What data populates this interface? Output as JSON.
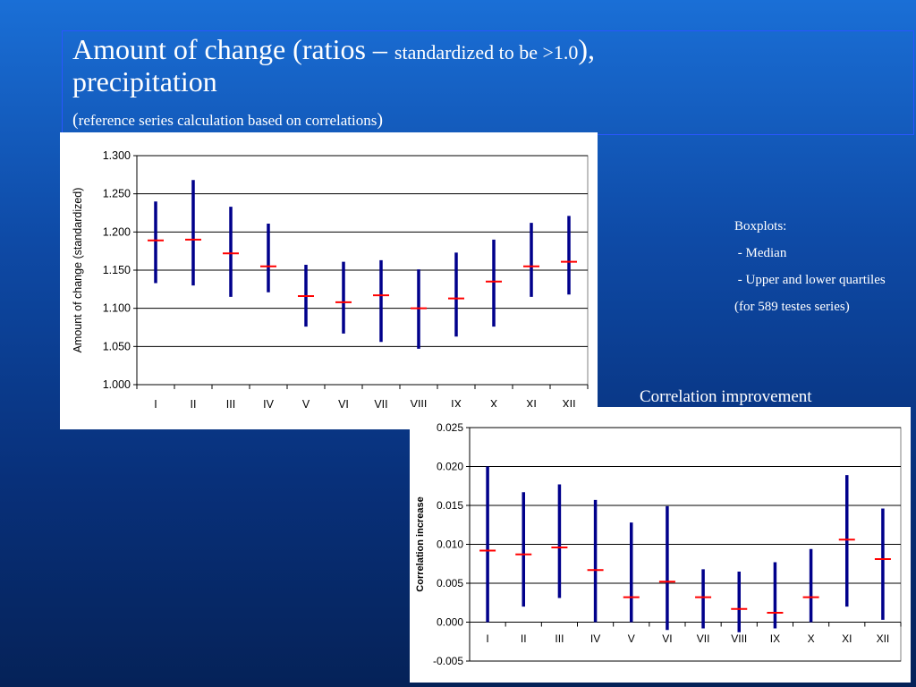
{
  "slide": {
    "title_main": "Amount of change (ratios – ",
    "title_small": "standardized to be >1.0",
    "title_close": "),",
    "title_line2": "precipitation",
    "subtitle_open": "(",
    "subtitle_text": "reference series calculation based on correlations",
    "subtitle_close": ")"
  },
  "notes": {
    "header": "Boxplots:",
    "item1": " - Median",
    "item2": " - Upper and lower quartiles",
    "footer": "(for 589 testes series)"
  },
  "chart2_heading": "Correlation improvement",
  "colors": {
    "whisker": "#00008b",
    "median": "#ff0000",
    "grid": "#000000",
    "background_top": "#1a6fd6",
    "background_bottom": "#052258"
  },
  "chart_data": [
    {
      "type": "boxplot",
      "ylabel": "Amount of change (standardized)",
      "ylim": [
        1.0,
        1.3
      ],
      "yticks": [
        "1.000",
        "1.050",
        "1.100",
        "1.150",
        "1.200",
        "1.250",
        "1.300"
      ],
      "grid": true,
      "categories": [
        "I",
        "II",
        "III",
        "IV",
        "V",
        "VI",
        "VII",
        "VIII",
        "IX",
        "X",
        "XI",
        "XII"
      ],
      "median": [
        1.189,
        1.19,
        1.172,
        1.155,
        1.116,
        1.108,
        1.117,
        1.1,
        1.113,
        1.135,
        1.155,
        1.161
      ],
      "upper": [
        1.24,
        1.268,
        1.233,
        1.211,
        1.157,
        1.161,
        1.163,
        1.151,
        1.173,
        1.19,
        1.212,
        1.221
      ],
      "lower": [
        1.133,
        1.13,
        1.115,
        1.121,
        1.076,
        1.067,
        1.056,
        1.047,
        1.063,
        1.076,
        1.115,
        1.118
      ]
    },
    {
      "type": "boxplot",
      "ylabel": "Correlation increase",
      "ylim": [
        -0.005,
        0.025
      ],
      "yticks": [
        "-0.005",
        "0.000",
        "0.005",
        "0.010",
        "0.015",
        "0.020",
        "0.025"
      ],
      "grid": true,
      "categories": [
        "I",
        "II",
        "III",
        "IV",
        "V",
        "VI",
        "VII",
        "VIII",
        "IX",
        "X",
        "XI",
        "XII"
      ],
      "median": [
        0.0092,
        0.0087,
        0.0096,
        0.0067,
        0.0032,
        0.0052,
        0.0032,
        0.0017,
        0.0012,
        0.0032,
        0.0106,
        0.0081
      ],
      "upper": [
        0.02,
        0.0167,
        0.0177,
        0.0157,
        0.0128,
        0.0149,
        0.0068,
        0.0065,
        0.0077,
        0.0094,
        0.0189,
        0.0146
      ],
      "lower": [
        0.0,
        0.002,
        0.0031,
        0.0,
        0.0,
        -0.001,
        -0.0008,
        -0.0013,
        -0.0008,
        0.0,
        0.002,
        0.0003
      ]
    }
  ]
}
